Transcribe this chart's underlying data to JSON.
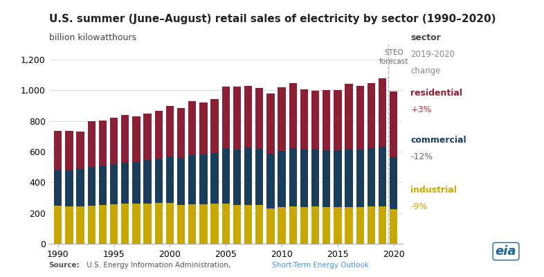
{
  "title": "U.S. summer (June–August) retail sales of electricity by sector (1990–2020)",
  "ylabel": "billion kilowatthours",
  "years": [
    1990,
    1991,
    1992,
    1993,
    1994,
    1995,
    1996,
    1997,
    1998,
    1999,
    2000,
    2001,
    2002,
    2003,
    2004,
    2005,
    2006,
    2007,
    2008,
    2009,
    2010,
    2011,
    2012,
    2013,
    2014,
    2015,
    2016,
    2017,
    2018,
    2019,
    2020
  ],
  "industrial": [
    248,
    242,
    246,
    250,
    255,
    256,
    262,
    260,
    264,
    265,
    265,
    252,
    258,
    256,
    260,
    262,
    255,
    254,
    251,
    232,
    238,
    244,
    240,
    242,
    239,
    238,
    240,
    241,
    244,
    246,
    224
  ],
  "commercial": [
    233,
    238,
    242,
    253,
    256,
    263,
    267,
    272,
    281,
    292,
    305,
    309,
    322,
    325,
    332,
    362,
    358,
    372,
    368,
    356,
    365,
    378,
    374,
    373,
    371,
    373,
    376,
    374,
    378,
    386,
    340
  ],
  "residential": [
    256,
    258,
    245,
    298,
    292,
    302,
    312,
    300,
    305,
    308,
    327,
    322,
    352,
    342,
    352,
    402,
    412,
    402,
    395,
    392,
    417,
    427,
    392,
    382,
    392,
    392,
    427,
    412,
    427,
    447,
    427
  ],
  "industrial_color": "#c8a800",
  "commercial_color": "#1a3d5c",
  "residential_color": "#8b2035",
  "steo_line_color": "#aaaaaa",
  "background_color": "#ffffff",
  "ylim": [
    0,
    1300
  ],
  "yticks": [
    0,
    200,
    400,
    600,
    800,
    1000,
    1200
  ],
  "forecast_year": 2020,
  "title_fontsize": 11,
  "axis_fontsize": 9,
  "legend_header_color": "#444444",
  "legend_pct_res_color": "#b03030",
  "legend_pct_com_color": "#666666",
  "legend_pct_ind_color": "#c8a800"
}
